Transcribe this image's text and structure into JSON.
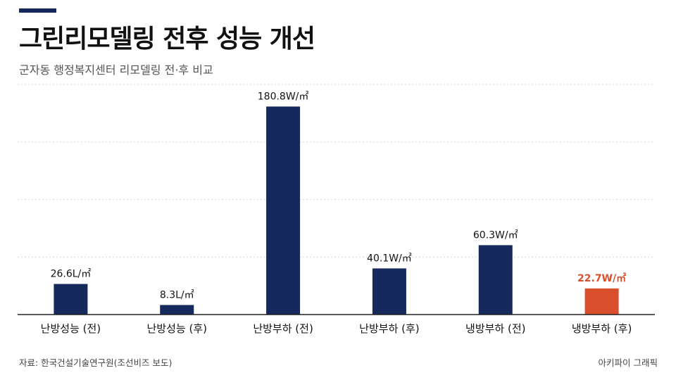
{
  "header": {
    "title": "그린리모델링 전후 성능 개선",
    "subtitle": "군자동 행정복지센터 리모델링 전·후 비교"
  },
  "footer": {
    "source": "자료: 한국건설기술연구원(조선비즈 보도)",
    "credit": "아키파이 그래픽"
  },
  "colors": {
    "accent": "#16295c",
    "bar": "#16295c",
    "highlight": "#d94f2b",
    "grid": "#d6d6d6",
    "axis": "#222222"
  },
  "chart_data": {
    "type": "bar",
    "categories": [
      "난방성능 (전)",
      "난방성능 (후)",
      "난방부하 (전)",
      "난방부하 (후)",
      "냉방부하 (전)",
      "냉방부하 (후)"
    ],
    "values": [
      26.6,
      8.3,
      180.8,
      40.1,
      60.3,
      22.7
    ],
    "data_labels": [
      "26.6L/㎡",
      "8.3L/㎡",
      "180.8W/㎡",
      "40.1W/㎡",
      "60.3W/㎡",
      "22.7W/㎡"
    ],
    "highlight_index": 5,
    "ylim": [
      0,
      200
    ],
    "gridlines": [
      50,
      100,
      150,
      200
    ],
    "grid": true,
    "legend": "none",
    "title": "그린리모델링 전후 성능 개선",
    "xlabel": "",
    "ylabel": ""
  }
}
